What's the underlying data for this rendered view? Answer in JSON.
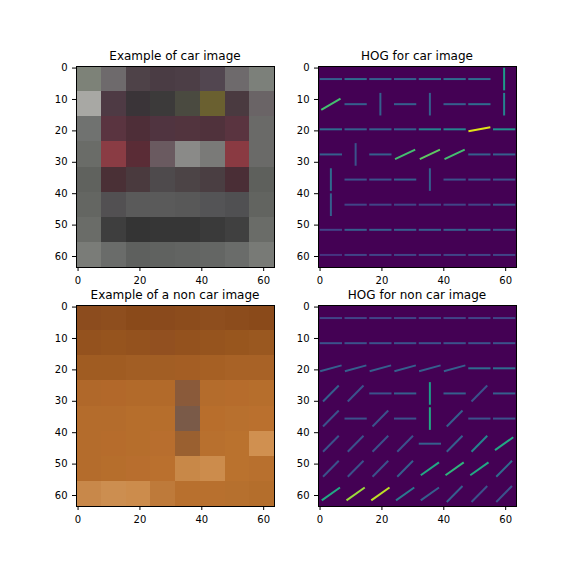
{
  "chart_data": [
    {
      "type": "image",
      "title": "Example of car image",
      "xlim": [
        -0.5,
        63.5
      ],
      "ylim": [
        63.5,
        -0.5
      ],
      "xticks": [
        0,
        20,
        40,
        60
      ],
      "yticks": [
        0,
        10,
        20,
        30,
        40,
        50,
        60
      ],
      "cells": [
        [
          "#7d8278",
          "#6e6a6c",
          "#4e4248",
          "#4a3c44",
          "#4c3e46",
          "#524650",
          "#6e6a6c",
          "#7c807a"
        ],
        [
          "#a8a8a4",
          "#4e3a44",
          "#3a3438",
          "#3c3a3a",
          "#4a4a40",
          "#6a6030",
          "#4a3a40",
          "#6a6466"
        ],
        [
          "#707270",
          "#5a3440",
          "#4e2e38",
          "#503440",
          "#52343e",
          "#50323c",
          "#5a3440",
          "#6a6a68"
        ],
        [
          "#6a6c68",
          "#8a3c44",
          "#5a2c36",
          "#6a5a60",
          "#8a8a88",
          "#7a7a78",
          "#8a3a42",
          "#6a6a68"
        ],
        [
          "#60625e",
          "#4a3036",
          "#4a3a3e",
          "#4e4a4c",
          "#4c4446",
          "#4a3e42",
          "#4a2e36",
          "#5e605c"
        ],
        [
          "#646662",
          "#525052",
          "#5a5a5a",
          "#5a5a5a",
          "#585858",
          "#545456",
          "#505052",
          "#626460"
        ],
        [
          "#6a6c68",
          "#3e3e3e",
          "#343434",
          "#363636",
          "#363636",
          "#3a3a3a",
          "#404040",
          "#6a6c68"
        ],
        [
          "#7a7c78",
          "#6a6c6a",
          "#5e605e",
          "#606260",
          "#626462",
          "#646664",
          "#6a6c6a",
          "#787a76"
        ]
      ]
    },
    {
      "type": "hog",
      "title": "HOG for car image",
      "xlim": [
        -0.5,
        63.5
      ],
      "ylim": [
        63.5,
        -0.5
      ],
      "xticks": [
        0,
        20,
        40,
        60
      ],
      "yticks": [
        0,
        10,
        20,
        30,
        40,
        50,
        60
      ],
      "magnitude_range": [
        0,
        1
      ],
      "orientations": [
        [
          0,
          0,
          0,
          0,
          0,
          0,
          0,
          90
        ],
        [
          30,
          0,
          90,
          0,
          90,
          0,
          0,
          90
        ],
        [
          0,
          0,
          0,
          0,
          0,
          0,
          10,
          0
        ],
        [
          0,
          90,
          0,
          25,
          25,
          25,
          0,
          0
        ],
        [
          90,
          0,
          0,
          0,
          90,
          0,
          0,
          0
        ],
        [
          90,
          0,
          0,
          0,
          0,
          0,
          0,
          0
        ],
        [
          0,
          0,
          0,
          0,
          0,
          0,
          0,
          0
        ],
        [
          0,
          0,
          0,
          0,
          0,
          0,
          0,
          0
        ]
      ],
      "magnitudes": [
        [
          0.3,
          0.35,
          0.3,
          0.3,
          0.35,
          0.35,
          0.35,
          0.55
        ],
        [
          0.7,
          0.3,
          0.3,
          0.3,
          0.3,
          0.3,
          0.35,
          0.45
        ],
        [
          0.35,
          0.3,
          0.3,
          0.3,
          0.45,
          0.45,
          0.95,
          0.5
        ],
        [
          0.3,
          0.25,
          0.3,
          0.7,
          0.75,
          0.7,
          0.3,
          0.3
        ],
        [
          0.35,
          0.25,
          0.25,
          0.3,
          0.3,
          0.25,
          0.25,
          0.25
        ],
        [
          0.3,
          0.2,
          0.2,
          0.2,
          0.2,
          0.2,
          0.2,
          0.25
        ],
        [
          0.2,
          0.3,
          0.3,
          0.3,
          0.3,
          0.3,
          0.3,
          0.25
        ],
        [
          0.15,
          0.2,
          0.2,
          0.2,
          0.2,
          0.2,
          0.2,
          0.2
        ]
      ]
    },
    {
      "type": "image",
      "title": "Example of a non car image",
      "xlim": [
        -0.5,
        63.5
      ],
      "ylim": [
        63.5,
        -0.5
      ],
      "xticks": [
        0,
        20,
        40,
        60
      ],
      "yticks": [
        0,
        10,
        20,
        30,
        40,
        50,
        60
      ],
      "cells": [
        [
          "#8c4c1e",
          "#8e4e1e",
          "#8a4a1a",
          "#8a4a1c",
          "#8c4c1c",
          "#8e4e1e",
          "#8c4c1c",
          "#8a4a1a"
        ],
        [
          "#94521e",
          "#96541e",
          "#94521e",
          "#925020",
          "#94521e",
          "#96541e",
          "#98561e",
          "#9a5820"
        ],
        [
          "#a05c22",
          "#a05c22",
          "#a25e24",
          "#a25e24",
          "#a45e24",
          "#a66024",
          "#a86226",
          "#a86226"
        ],
        [
          "#b0682a",
          "#b2682a",
          "#b26a2a",
          "#b26a2a",
          "#8a5a3a",
          "#b46c2c",
          "#b66c2c",
          "#b66e2c"
        ],
        [
          "#b46c2c",
          "#b46c2c",
          "#b66e2c",
          "#b66e2c",
          "#7a5a48",
          "#b86e2c",
          "#b8702e",
          "#ba702e"
        ],
        [
          "#b46c2c",
          "#b66c2c",
          "#b66e2c",
          "#b86e2e",
          "#9a6030",
          "#b8702e",
          "#ba722e",
          "#d09050"
        ],
        [
          "#b46c2c",
          "#b66e2c",
          "#b86e2e",
          "#ba702e",
          "#c88848",
          "#cc8c4c",
          "#ba722e",
          "#b8702e"
        ],
        [
          "#c8884a",
          "#cc8e50",
          "#cc8c4c",
          "#be7a3a",
          "#b8702e",
          "#b8702e",
          "#b6702e",
          "#b46e2c"
        ]
      ]
    },
    {
      "type": "hog",
      "title": "HOG for non car image",
      "xlim": [
        -0.5,
        63.5
      ],
      "ylim": [
        63.5,
        -0.5
      ],
      "xticks": [
        0,
        20,
        40,
        60
      ],
      "yticks": [
        0,
        10,
        20,
        30,
        40,
        50,
        60
      ],
      "magnitude_range": [
        0,
        1
      ],
      "orientations": [
        [
          0,
          0,
          0,
          0,
          0,
          0,
          0,
          0
        ],
        [
          0,
          0,
          0,
          0,
          0,
          0,
          0,
          0
        ],
        [
          15,
          15,
          15,
          15,
          15,
          15,
          0,
          0
        ],
        [
          45,
          45,
          0,
          0,
          90,
          0,
          45,
          0
        ],
        [
          45,
          0,
          45,
          0,
          90,
          45,
          0,
          0
        ],
        [
          45,
          45,
          45,
          45,
          0,
          45,
          45,
          35
        ],
        [
          45,
          45,
          45,
          45,
          35,
          35,
          35,
          45
        ],
        [
          35,
          35,
          35,
          35,
          35,
          45,
          45,
          45
        ]
      ],
      "magnitudes": [
        [
          0.2,
          0.2,
          0.2,
          0.2,
          0.2,
          0.2,
          0.2,
          0.2
        ],
        [
          0.25,
          0.25,
          0.25,
          0.25,
          0.25,
          0.25,
          0.25,
          0.25
        ],
        [
          0.3,
          0.3,
          0.3,
          0.3,
          0.3,
          0.3,
          0.35,
          0.35
        ],
        [
          0.3,
          0.25,
          0.25,
          0.3,
          0.55,
          0.3,
          0.25,
          0.3
        ],
        [
          0.25,
          0.25,
          0.25,
          0.25,
          0.6,
          0.3,
          0.25,
          0.25
        ],
        [
          0.25,
          0.25,
          0.25,
          0.25,
          0.3,
          0.3,
          0.45,
          0.6
        ],
        [
          0.25,
          0.25,
          0.25,
          0.3,
          0.6,
          0.65,
          0.6,
          0.35
        ],
        [
          0.6,
          0.85,
          0.9,
          0.4,
          0.3,
          0.3,
          0.25,
          0.25
        ]
      ]
    }
  ]
}
